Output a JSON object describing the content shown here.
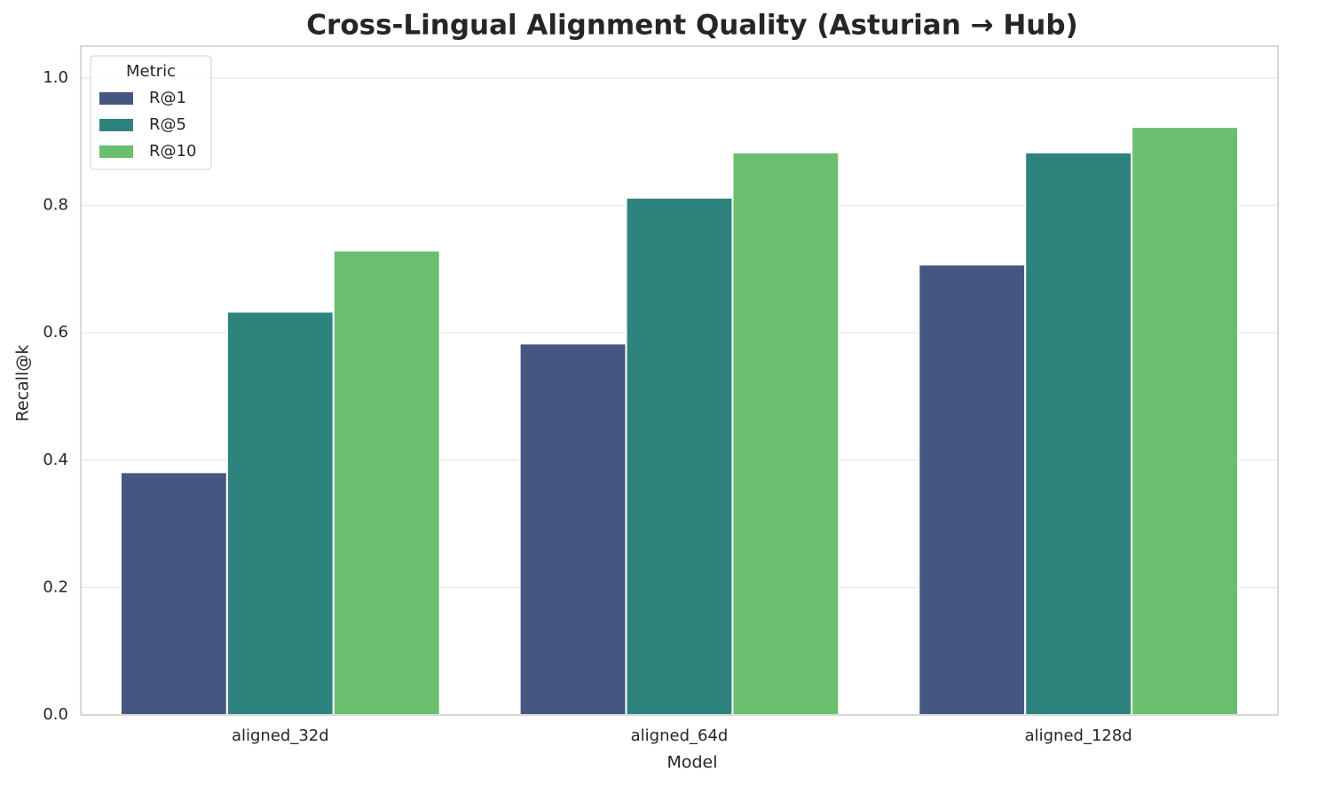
{
  "chart_data": {
    "type": "bar",
    "title": "Cross-Lingual Alignment Quality (Asturian → Hub)",
    "x_label": "Model",
    "y_label": "Recall@k",
    "categories": [
      "aligned_32d",
      "aligned_64d",
      "aligned_128d"
    ],
    "series": [
      {
        "name": "R@1",
        "color": "#455681",
        "values": [
          0.381,
          0.583,
          0.707
        ]
      },
      {
        "name": "R@5",
        "color": "#2e837c",
        "values": [
          0.633,
          0.812,
          0.883
        ]
      },
      {
        "name": "R@10",
        "color": "#6abe6e",
        "values": [
          0.729,
          0.883,
          0.923
        ]
      }
    ],
    "legend_title": "Metric",
    "legend_position": "upper-left",
    "ylim": [
      0,
      1.05
    ],
    "yticks": [
      {
        "value": 0,
        "label": "0.0"
      },
      {
        "value": 0.2,
        "label": "0.2"
      },
      {
        "value": 0.4,
        "label": "0.4"
      },
      {
        "value": 0.6,
        "label": "0.6"
      },
      {
        "value": 0.8,
        "label": "0.8"
      },
      {
        "value": 1,
        "label": "1.0"
      }
    ],
    "grid": true
  }
}
